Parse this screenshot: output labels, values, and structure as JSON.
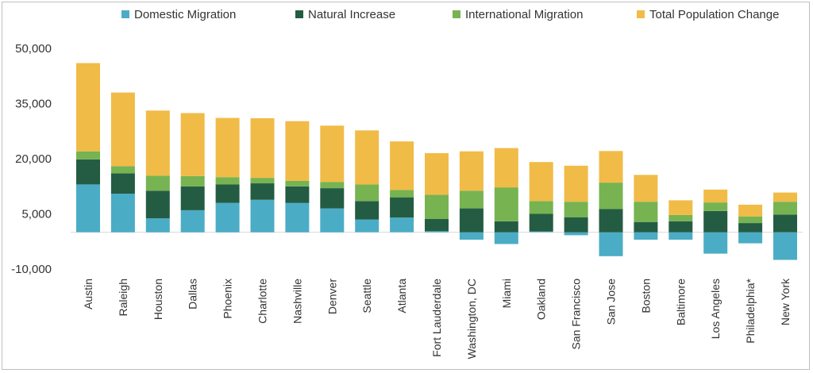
{
  "chart_data": {
    "type": "bar",
    "stacked": true,
    "title": "",
    "xlabel": "",
    "ylabel": "",
    "ylim": [
      -10000,
      50000
    ],
    "yticks": [
      50000,
      35000,
      20000,
      5000,
      -10000
    ],
    "ytick_labels": [
      "50,000",
      "35,000",
      "20,000",
      "5,000",
      "-10,000"
    ],
    "grid": false,
    "legend_position": "top",
    "categories": [
      "Austin",
      "Raleigh",
      "Houston",
      "Dallas",
      "Phoenix",
      "Charlotte",
      "Nashville",
      "Denver",
      "Seattle",
      "Atlanta",
      "Fort Lauderdale",
      "Washington, DC",
      "Miami",
      "Oakland",
      "San Francisco",
      "San Jose",
      "Boston",
      "Baltimore",
      "Los Angeles",
      "Philadelphia*",
      "New York"
    ],
    "series": [
      {
        "name": "Domestic Migration",
        "color": "#4bacc6",
        "values": [
          13000,
          10500,
          3800,
          6000,
          8000,
          8800,
          8000,
          6500,
          3500,
          4000,
          300,
          -2000,
          -3200,
          200,
          -800,
          -6500,
          -2000,
          -2000,
          -5800,
          -3000,
          -7500
        ]
      },
      {
        "name": "Natural Increase",
        "color": "#245c43",
        "values": [
          6800,
          5500,
          7500,
          6500,
          5000,
          4500,
          4500,
          5500,
          5000,
          5500,
          3300,
          6500,
          3000,
          4800,
          4100,
          6300,
          2800,
          3000,
          5800,
          2500,
          4800
        ]
      },
      {
        "name": "International Migration",
        "color": "#77b351",
        "values": [
          2200,
          2000,
          4100,
          2800,
          2000,
          1500,
          1500,
          1700,
          4500,
          2000,
          6600,
          4800,
          9200,
          3500,
          4200,
          7200,
          5500,
          1700,
          2300,
          1800,
          3500
        ]
      },
      {
        "name": "Total Population Change",
        "color": "#f1bb47",
        "values": [
          24000,
          20000,
          17700,
          17100,
          16100,
          16200,
          16200,
          15300,
          14700,
          13200,
          11300,
          10700,
          10700,
          10600,
          9800,
          8600,
          7300,
          4000,
          3500,
          3200,
          2500
        ]
      }
    ]
  }
}
